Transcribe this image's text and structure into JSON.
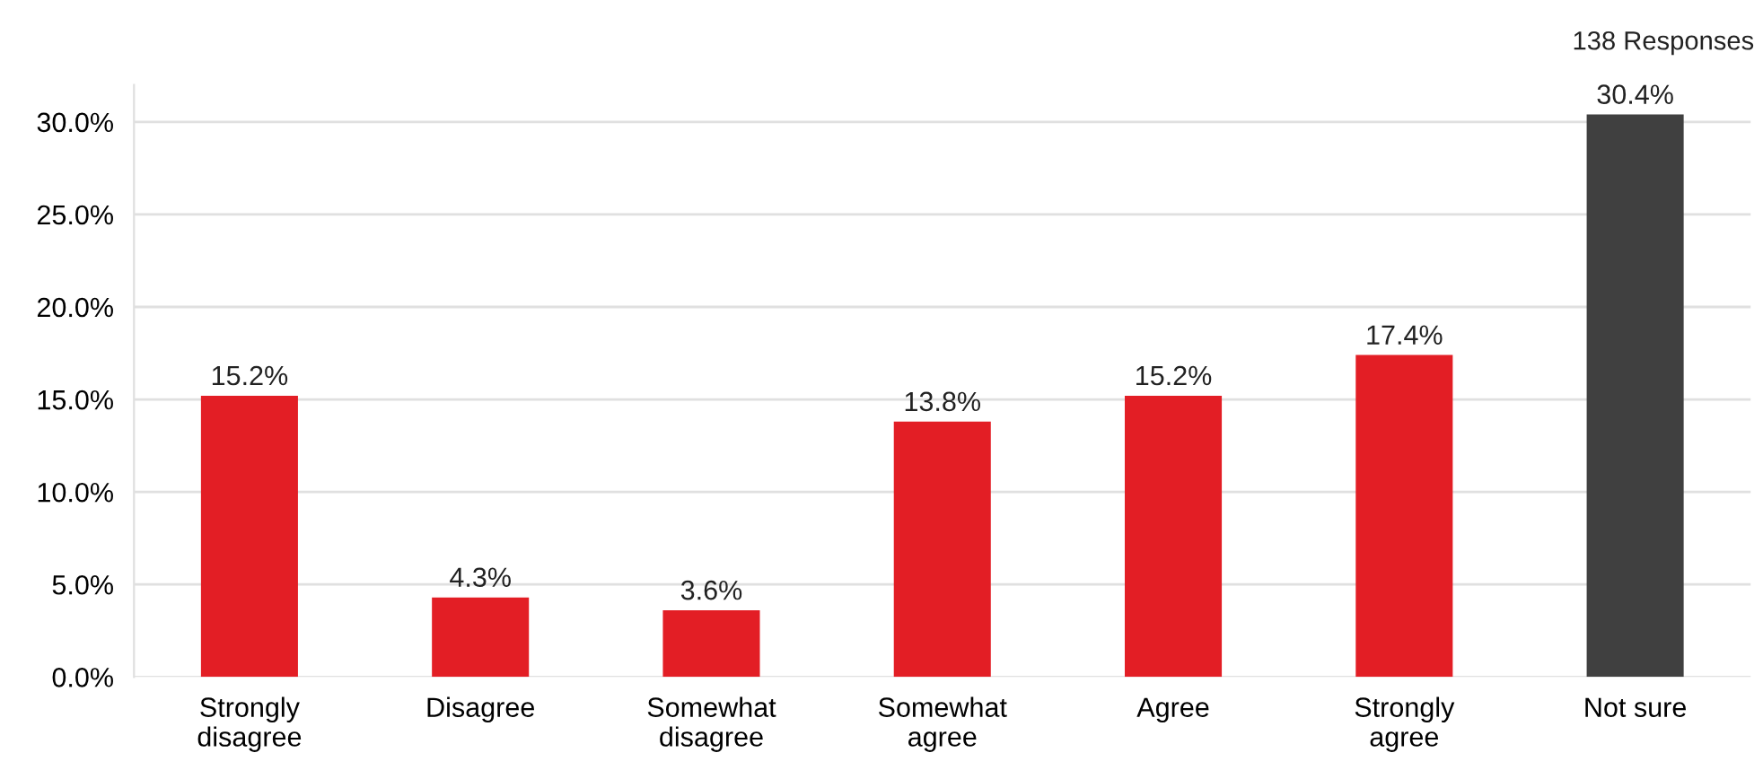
{
  "chart_data": {
    "type": "bar",
    "categories": [
      "Strongly\ndisagree",
      "Disagree",
      "Somewhat\ndisagree",
      "Somewhat\nagree",
      "Agree",
      "Strongly\nagree",
      "Not sure"
    ],
    "values": [
      15.2,
      4.3,
      3.6,
      13.8,
      15.2,
      17.4,
      30.4
    ],
    "colors": [
      "#e31e25",
      "#e31e25",
      "#e31e25",
      "#e31e25",
      "#e31e25",
      "#e31e25",
      "#404040"
    ],
    "value_labels": [
      "15.2%",
      "4.3%",
      "3.6%",
      "13.8%",
      "15.2%",
      "17.4%",
      "30.4%"
    ],
    "yticks": [
      {
        "value": 0,
        "label": "0.0%"
      },
      {
        "value": 5,
        "label": "5.0%"
      },
      {
        "value": 10,
        "label": "10.0%"
      },
      {
        "value": 15,
        "label": "15.0%"
      },
      {
        "value": 20,
        "label": "20.0%"
      },
      {
        "value": 25,
        "label": "25.0%"
      },
      {
        "value": 30,
        "label": "30.0%"
      }
    ],
    "ylim": [
      0,
      32
    ],
    "grid": "y",
    "legend": false,
    "annotations": [
      "138 Responses"
    ]
  }
}
